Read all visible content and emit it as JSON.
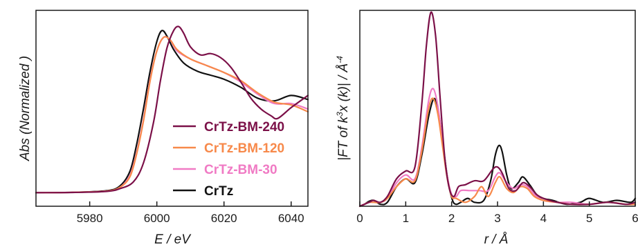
{
  "chart_data": [
    {
      "type": "line",
      "title": "",
      "xlabel": "E / eV",
      "ylabel": "Abs (Normalized )",
      "xlim": [
        5964,
        6045
      ],
      "ylim": [
        -0.1,
        1.35
      ],
      "xticks": [
        5980,
        6000,
        6020,
        6040
      ],
      "xtick_labels": [
        "5980",
        "6000",
        "6020",
        "6040"
      ],
      "y_ticks_shown": false,
      "grid": false,
      "legend_position": "right",
      "series": [
        {
          "name": "CrTz",
          "color": "#111111",
          "x": [
            5964,
            5975,
            5985,
            5989,
            5992,
            5994,
            5996,
            5998,
            6000,
            6001.5,
            6003,
            6005,
            6008,
            6012,
            6016,
            6020,
            6025,
            6030,
            6035,
            6040,
            6045
          ],
          "y": [
            0,
            0.003,
            0.015,
            0.05,
            0.16,
            0.36,
            0.62,
            0.9,
            1.12,
            1.2,
            1.16,
            1.06,
            0.96,
            0.9,
            0.87,
            0.84,
            0.78,
            0.7,
            0.68,
            0.72,
            0.69
          ]
        },
        {
          "name": "CrTz-BM-30",
          "color": "#f07ac4",
          "x": [
            5964,
            5975,
            5985,
            5989,
            5992,
            5994,
            5996,
            5998,
            6000,
            6002,
            6004,
            6006,
            6010,
            6015,
            6020,
            6025,
            6030,
            6035,
            6040,
            6045
          ],
          "y": [
            0,
            0.003,
            0.012,
            0.04,
            0.13,
            0.3,
            0.54,
            0.84,
            1.05,
            1.15,
            1.13,
            1.05,
            0.99,
            0.94,
            0.89,
            0.82,
            0.73,
            0.66,
            0.66,
            0.62
          ]
        },
        {
          "name": "CrTz-BM-120",
          "color": "#f7894a",
          "x": [
            5964,
            5975,
            5985,
            5989,
            5992,
            5994,
            5996,
            5998,
            6000,
            6002,
            6004,
            6006,
            6010,
            6015,
            6020,
            6025,
            6030,
            6035,
            6040,
            6045
          ],
          "y": [
            0,
            0.003,
            0.012,
            0.04,
            0.12,
            0.29,
            0.53,
            0.83,
            1.05,
            1.15,
            1.13,
            1.06,
            0.99,
            0.94,
            0.89,
            0.83,
            0.74,
            0.67,
            0.65,
            0.6
          ]
        },
        {
          "name": "CrTz-BM-240",
          "color": "#7b1048",
          "x": [
            5964,
            5975,
            5985,
            5989,
            5993,
            5996,
            5999,
            6001,
            6003,
            6005,
            6006.5,
            6008,
            6010,
            6013,
            6016,
            6019,
            6022,
            6025,
            6028,
            6031,
            6034,
            6036,
            6040,
            6045
          ],
          "y": [
            0,
            0.002,
            0.01,
            0.03,
            0.08,
            0.22,
            0.52,
            0.82,
            1.07,
            1.2,
            1.23,
            1.18,
            1.08,
            1.02,
            1.03,
            1.0,
            0.93,
            0.82,
            0.7,
            0.62,
            0.57,
            0.55,
            0.63,
            0.72
          ]
        }
      ]
    },
    {
      "type": "line",
      "title": "",
      "xlabel": "r / Å",
      "ylabel": "|FT of k³x (k)| / Å⁻⁴",
      "ylabel_parts": {
        "a": "|FT of k",
        "b": "3",
        "c": "x (k)| / Å",
        "d": "-4"
      },
      "xlim": [
        0,
        6
      ],
      "ylim": [
        0,
        1.0
      ],
      "xticks": [
        0,
        1,
        2,
        3,
        4,
        5,
        6
      ],
      "xtick_labels": [
        "0",
        "1",
        "2",
        "3",
        "4",
        "5",
        "6"
      ],
      "y_ticks_shown": false,
      "grid": false,
      "series": [
        {
          "name": "CrTz",
          "color": "#111111",
          "x": [
            0,
            0.1,
            0.2,
            0.3,
            0.45,
            0.6,
            0.8,
            1.0,
            1.2,
            1.35,
            1.5,
            1.62,
            1.72,
            1.82,
            1.92,
            2.02,
            2.1,
            2.2,
            2.35,
            2.5,
            2.7,
            2.85,
            2.95,
            3.03,
            3.1,
            3.2,
            3.3,
            3.45,
            3.55,
            3.7,
            3.85,
            4.0,
            4.2,
            4.5,
            4.8,
            5.0,
            5.3,
            5.6,
            5.9,
            6.0
          ],
          "y": [
            0,
            0.01,
            0.025,
            0.03,
            0.01,
            0.02,
            0.1,
            0.14,
            0.12,
            0.26,
            0.46,
            0.55,
            0.47,
            0.3,
            0.13,
            0.03,
            0.01,
            0.02,
            0.04,
            0.02,
            0.03,
            0.13,
            0.26,
            0.31,
            0.28,
            0.16,
            0.09,
            0.12,
            0.15,
            0.11,
            0.06,
            0.04,
            0.03,
            0.01,
            0.02,
            0.04,
            0.02,
            0.03,
            0.02,
            0.04
          ]
        },
        {
          "name": "CrTz-BM-30",
          "color": "#f07ac4",
          "x": [
            0,
            0.1,
            0.2,
            0.3,
            0.45,
            0.6,
            0.8,
            1.0,
            1.2,
            1.35,
            1.5,
            1.6,
            1.7,
            1.8,
            1.9,
            2.0,
            2.1,
            2.2,
            2.4,
            2.6,
            2.8,
            2.95,
            3.05,
            3.2,
            3.35,
            3.5,
            3.65,
            3.8,
            4.0,
            4.3,
            4.6,
            5.0,
            5.4,
            5.8,
            6.0
          ],
          "y": [
            0,
            0.01,
            0.02,
            0.02,
            0.02,
            0.04,
            0.12,
            0.16,
            0.14,
            0.3,
            0.54,
            0.6,
            0.51,
            0.33,
            0.16,
            0.06,
            0.05,
            0.08,
            0.08,
            0.08,
            0.08,
            0.15,
            0.17,
            0.12,
            0.09,
            0.11,
            0.1,
            0.06,
            0.03,
            0.02,
            0.02,
            0.01,
            0.02,
            0.01,
            0.01
          ]
        },
        {
          "name": "CrTz-BM-120",
          "color": "#f7894a",
          "x": [
            0,
            0.1,
            0.2,
            0.3,
            0.45,
            0.6,
            0.8,
            1.0,
            1.2,
            1.35,
            1.5,
            1.6,
            1.7,
            1.8,
            1.9,
            2.0,
            2.1,
            2.3,
            2.5,
            2.65,
            2.8,
            2.95,
            3.05,
            3.2,
            3.35,
            3.5,
            3.65,
            3.8,
            4.0,
            4.3,
            4.6,
            5.0,
            5.4,
            5.8,
            6.0
          ],
          "y": [
            0,
            0.01,
            0.02,
            0.02,
            0.02,
            0.04,
            0.1,
            0.14,
            0.13,
            0.28,
            0.5,
            0.55,
            0.47,
            0.31,
            0.15,
            0.05,
            0.04,
            0.02,
            0.05,
            0.1,
            0.05,
            0.12,
            0.15,
            0.09,
            0.07,
            0.1,
            0.09,
            0.05,
            0.03,
            0.02,
            0.01,
            0.01,
            0.02,
            0.01,
            0.01
          ]
        },
        {
          "name": "CrTz-BM-240",
          "color": "#7b1048",
          "x": [
            0,
            0.1,
            0.2,
            0.3,
            0.45,
            0.6,
            0.8,
            1.0,
            1.2,
            1.35,
            1.45,
            1.55,
            1.65,
            1.75,
            1.85,
            1.95,
            2.05,
            2.15,
            2.3,
            2.5,
            2.7,
            2.9,
            3.0,
            3.1,
            3.25,
            3.4,
            3.55,
            3.7,
            3.85,
            4.0,
            4.3,
            4.6,
            5.0,
            5.4,
            5.8,
            6.0
          ],
          "y": [
            0,
            0.01,
            0.02,
            0.03,
            0.02,
            0.05,
            0.14,
            0.18,
            0.2,
            0.52,
            0.82,
            0.99,
            0.87,
            0.55,
            0.25,
            0.09,
            0.05,
            0.1,
            0.11,
            0.13,
            0.13,
            0.19,
            0.2,
            0.17,
            0.09,
            0.08,
            0.12,
            0.1,
            0.06,
            0.04,
            0.02,
            0.01,
            0.01,
            0.02,
            0.01,
            0.02
          ]
        }
      ]
    }
  ]
}
